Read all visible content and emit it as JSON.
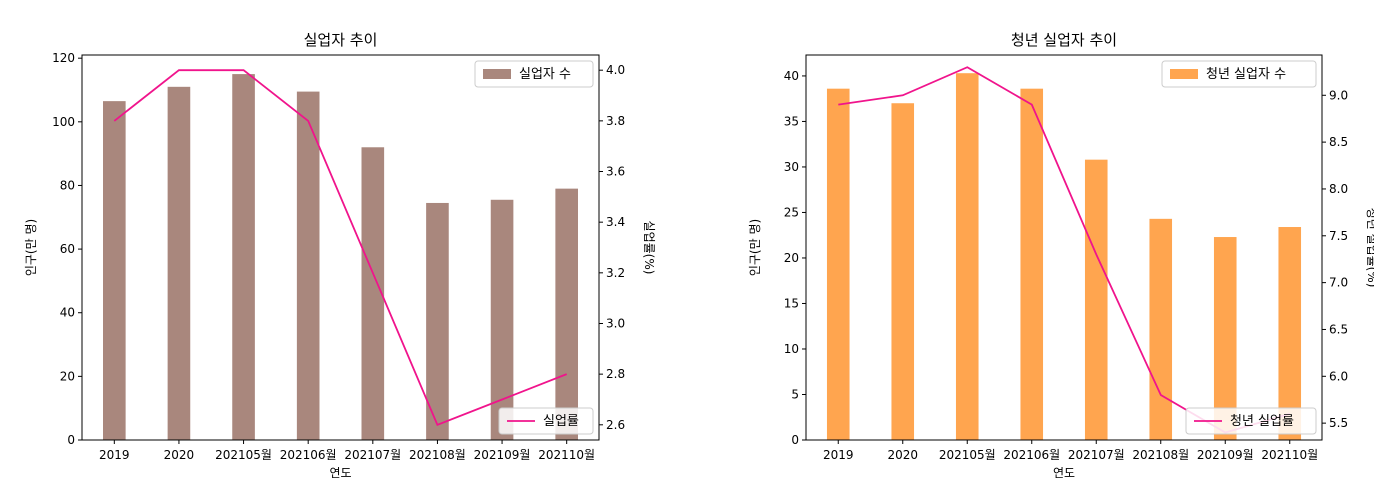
{
  "chart_data": [
    {
      "type": "bar",
      "title": "실업자 추이",
      "xlabel": "연도",
      "ylabel": "인구(만 명)",
      "y2label": "실업률(%)",
      "categories": [
        "2019",
        "2020",
        "202105월",
        "202106월",
        "202107월",
        "202108월",
        "202109월",
        "202110월"
      ],
      "ylim": [
        0,
        121
      ],
      "yticks": [
        0,
        20,
        40,
        60,
        80,
        100,
        120
      ],
      "y2lim": [
        2.54,
        4.06
      ],
      "y2ticks": [
        2.6,
        2.8,
        3.0,
        3.2,
        3.4,
        3.6,
        3.8,
        4.0
      ],
      "series": [
        {
          "name": "실업자 수",
          "kind": "bar",
          "axis": "left",
          "color": "#a9877d",
          "values": [
            106.5,
            111.0,
            115.0,
            109.5,
            92.0,
            74.5,
            75.5,
            79.0
          ]
        },
        {
          "name": "실업률",
          "kind": "line",
          "axis": "right",
          "color": "#f0148c",
          "values": [
            3.8,
            4.0,
            4.0,
            3.8,
            3.2,
            2.6,
            2.7,
            2.8
          ]
        }
      ],
      "legend_bar": "upper right",
      "legend_line": "lower right",
      "grid": false
    },
    {
      "type": "bar",
      "title": "청년 실업자 추이",
      "xlabel": "연도",
      "ylabel": "인구(만 명)",
      "y2label": "청년 실업률(%)",
      "categories": [
        "2019",
        "2020",
        "202105월",
        "202106월",
        "202107월",
        "202108월",
        "202109월",
        "202110월"
      ],
      "ylim": [
        0,
        42.3
      ],
      "yticks": [
        0,
        5,
        10,
        15,
        20,
        25,
        30,
        35,
        40
      ],
      "y2lim": [
        5.32,
        9.43
      ],
      "y2ticks": [
        5.5,
        6.0,
        6.5,
        7.0,
        7.5,
        8.0,
        8.5,
        9.0
      ],
      "series": [
        {
          "name": "청년 실업자 수",
          "kind": "bar",
          "axis": "left",
          "color": "#ffa54f",
          "values": [
            38.6,
            37.0,
            40.3,
            38.6,
            30.8,
            24.3,
            22.3,
            23.4
          ]
        },
        {
          "name": "청년 실업률",
          "kind": "line",
          "axis": "right",
          "color": "#f0148c",
          "values": [
            8.9,
            9.0,
            9.3,
            8.9,
            7.3,
            5.8,
            5.4,
            5.6
          ]
        }
      ],
      "legend_bar": "upper right",
      "legend_line": "lower right",
      "grid": false
    }
  ]
}
